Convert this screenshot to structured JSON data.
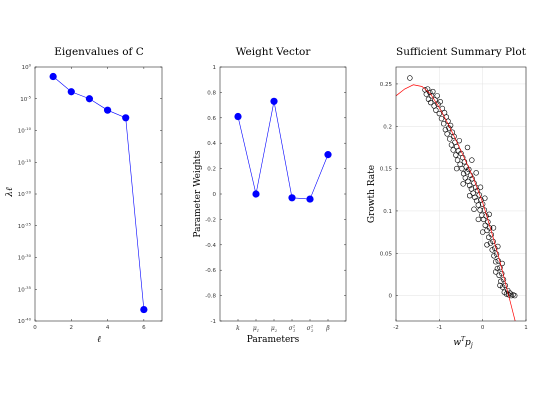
{
  "chart_data": [
    {
      "type": "line",
      "title": "Eigenvalues of C",
      "xlabel": "ℓ",
      "ylabel": "λℓ",
      "xlim": [
        0,
        7
      ],
      "ylim_log10": [
        -40,
        0
      ],
      "yscale": "log",
      "xticks": [
        "0",
        "2",
        "4",
        "6"
      ],
      "yticks": [
        {
          "base": "10",
          "exp": "0"
        },
        {
          "base": "10",
          "exp": "-5"
        },
        {
          "base": "10",
          "exp": "-10"
        },
        {
          "base": "10",
          "exp": "-15"
        },
        {
          "base": "10",
          "exp": "-20"
        },
        {
          "base": "10",
          "exp": "-25"
        },
        {
          "base": "10",
          "exp": "-30"
        },
        {
          "base": "10",
          "exp": "-35"
        },
        {
          "base": "10",
          "exp": "-40"
        }
      ],
      "x": [
        1,
        2,
        3,
        4,
        5,
        6
      ],
      "y_log10": [
        -1.5,
        -3.9,
        -5.0,
        -6.8,
        -8.0,
        -38.2
      ],
      "line_color": "#0000ff",
      "marker_color": "#0000ff",
      "grid": false
    },
    {
      "type": "line",
      "title": "Weight Vector",
      "xlabel": "Parameters",
      "ylabel": "Parameter Weights",
      "ylim": [
        -1,
        1
      ],
      "yticks": [
        "1",
        "0.8",
        "0.6",
        "0.4",
        "0.2",
        "0",
        "-0.2",
        "-0.4",
        "-0.6",
        "-0.8",
        "-1"
      ],
      "categories": [
        {
          "base": "k",
          "sub": "",
          "sup": ""
        },
        {
          "base": "μ",
          "sub": "1",
          "sup": ""
        },
        {
          "base": "μ",
          "sub": "2",
          "sup": ""
        },
        {
          "base": "σ",
          "sub": "1",
          "sup": "2"
        },
        {
          "base": "σ",
          "sub": "2",
          "sup": "2"
        },
        {
          "base": "β",
          "sub": "",
          "sup": ""
        }
      ],
      "values": [
        0.61,
        0.0,
        0.73,
        -0.03,
        -0.04,
        0.31
      ],
      "line_color": "#0000ff",
      "marker_color": "#0000ff",
      "grid": false
    },
    {
      "type": "scatter",
      "title": "Sufficient Summary Plot",
      "xlabel": "wᵀpⱼ",
      "xlabel_parts": {
        "base": "w",
        "sup": "T",
        "mid": "p",
        "sub": "j"
      },
      "ylabel": "Growth Rate",
      "xlim": [
        -2,
        1
      ],
      "ylim": [
        -0.03,
        0.27
      ],
      "xticks": [
        "-2",
        "-1",
        "0",
        "1"
      ],
      "yticks": [
        "0.25",
        "0.2",
        "0.15",
        "0.1",
        "0.05",
        "0"
      ],
      "grid": true,
      "marker": "open-circle",
      "marker_color": "#000000",
      "fit_line_color": "#ff0000",
      "fit_curve": [
        [
          -2.0,
          0.236
        ],
        [
          -1.8,
          0.244
        ],
        [
          -1.6,
          0.249
        ],
        [
          -1.4,
          0.247
        ],
        [
          -1.2,
          0.238
        ],
        [
          -1.0,
          0.222
        ],
        [
          -0.8,
          0.203
        ],
        [
          -0.6,
          0.182
        ],
        [
          -0.4,
          0.16
        ],
        [
          -0.2,
          0.137
        ],
        [
          0.0,
          0.11
        ],
        [
          0.2,
          0.076
        ],
        [
          0.4,
          0.04
        ],
        [
          0.55,
          0.01
        ],
        [
          0.7,
          -0.02
        ],
        [
          0.75,
          -0.03
        ]
      ],
      "points": [
        [
          -1.68,
          0.257
        ],
        [
          -1.33,
          0.243
        ],
        [
          -1.3,
          0.238
        ],
        [
          -1.27,
          0.244
        ],
        [
          -1.25,
          0.232
        ],
        [
          -1.22,
          0.24
        ],
        [
          -1.2,
          0.228
        ],
        [
          -1.18,
          0.236
        ],
        [
          -1.15,
          0.241
        ],
        [
          -1.12,
          0.224
        ],
        [
          -1.1,
          0.231
        ],
        [
          -1.08,
          0.219
        ],
        [
          -1.05,
          0.236
        ],
        [
          -1.03,
          0.226
        ],
        [
          -1.0,
          0.215
        ],
        [
          -0.98,
          0.229
        ],
        [
          -0.95,
          0.209
        ],
        [
          -0.93,
          0.221
        ],
        [
          -0.9,
          0.203
        ],
        [
          -0.88,
          0.216
        ],
        [
          -0.86,
          0.196
        ],
        [
          -0.84,
          0.211
        ],
        [
          -0.82,
          0.191
        ],
        [
          -0.8,
          0.206
        ],
        [
          -0.78,
          0.198
        ],
        [
          -0.76,
          0.185
        ],
        [
          -0.74,
          0.201
        ],
        [
          -0.72,
          0.178
        ],
        [
          -0.7,
          0.193
        ],
        [
          -0.68,
          0.172
        ],
        [
          -0.66,
          0.188
        ],
        [
          -0.64,
          0.181
        ],
        [
          -0.62,
          0.166
        ],
        [
          -0.6,
          0.176
        ],
        [
          -0.58,
          0.16
        ],
        [
          -0.56,
          0.171
        ],
        [
          -0.54,
          0.183
        ],
        [
          -0.52,
          0.155
        ],
        [
          -0.5,
          0.168
        ],
        [
          -0.48,
          0.15
        ],
        [
          -0.46,
          0.163
        ],
        [
          -0.44,
          0.144
        ],
        [
          -0.42,
          0.158
        ],
        [
          -0.4,
          0.139
        ],
        [
          -0.38,
          0.152
        ],
        [
          -0.36,
          0.146
        ],
        [
          -0.34,
          0.135
        ],
        [
          -0.32,
          0.149
        ],
        [
          -0.3,
          0.13
        ],
        [
          -0.28,
          0.142
        ],
        [
          -0.26,
          0.126
        ],
        [
          -0.24,
          0.138
        ],
        [
          -0.22,
          0.121
        ],
        [
          -0.2,
          0.133
        ],
        [
          -0.18,
          0.116
        ],
        [
          -0.16,
          0.128
        ],
        [
          -0.14,
          0.112
        ],
        [
          -0.12,
          0.124
        ],
        [
          -0.1,
          0.107
        ],
        [
          -0.08,
          0.119
        ],
        [
          -0.06,
          0.101
        ],
        [
          -0.04,
          0.113
        ],
        [
          -0.02,
          0.095
        ],
        [
          0.0,
          0.108
        ],
        [
          0.02,
          0.09
        ],
        [
          0.04,
          0.101
        ],
        [
          0.06,
          0.083
        ],
        [
          0.08,
          0.094
        ],
        [
          0.1,
          0.077
        ],
        [
          0.12,
          0.087
        ],
        [
          0.14,
          0.069
        ],
        [
          0.16,
          0.08
        ],
        [
          0.18,
          0.062
        ],
        [
          0.2,
          0.072
        ],
        [
          0.22,
          0.054
        ],
        [
          0.24,
          0.064
        ],
        [
          0.26,
          0.047
        ],
        [
          0.28,
          0.056
        ],
        [
          0.3,
          0.04
        ],
        [
          0.32,
          0.049
        ],
        [
          0.34,
          0.032
        ],
        [
          0.36,
          0.041
        ],
        [
          0.38,
          0.024
        ],
        [
          0.4,
          0.033
        ],
        [
          0.42,
          0.017
        ],
        [
          0.44,
          0.026
        ],
        [
          0.46,
          0.01
        ],
        [
          0.48,
          0.019
        ],
        [
          0.5,
          0.004
        ],
        [
          0.52,
          0.012
        ],
        [
          0.55,
          0.002
        ],
        [
          0.58,
          0.006
        ],
        [
          0.6,
          0.001
        ],
        [
          0.63,
          0.003
        ],
        [
          0.66,
          0.0
        ],
        [
          0.7,
          0.001
        ],
        [
          0.74,
          0.0
        ],
        [
          -0.35,
          0.175
        ],
        [
          -0.25,
          0.16
        ],
        [
          -0.15,
          0.145
        ],
        [
          -0.05,
          0.128
        ],
        [
          0.05,
          0.115
        ],
        [
          0.15,
          0.096
        ],
        [
          0.25,
          0.08
        ],
        [
          0.35,
          0.058
        ],
        [
          0.45,
          0.038
        ],
        [
          -0.6,
          0.15
        ],
        [
          -0.45,
          0.132
        ],
        [
          -0.3,
          0.118
        ],
        [
          -0.1,
          0.09
        ],
        [
          0.1,
          0.06
        ],
        [
          0.3,
          0.028
        ],
        [
          0.4,
          0.012
        ],
        [
          -0.2,
          0.102
        ],
        [
          0.0,
          0.075
        ]
      ]
    }
  ]
}
